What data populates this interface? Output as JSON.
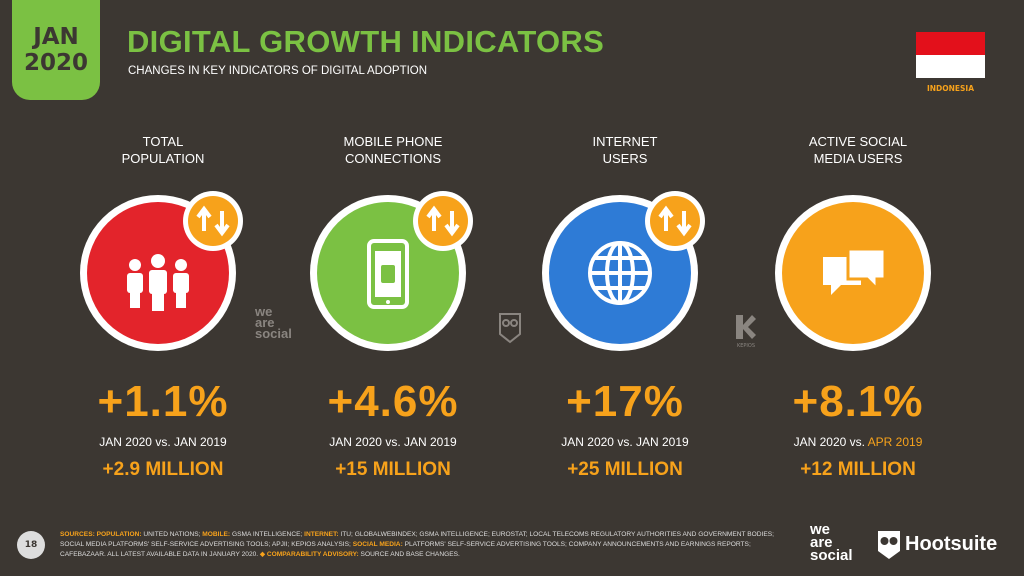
{
  "header": {
    "badge": [
      "JAN",
      "2020"
    ],
    "title": "DIGITAL GROWTH INDICATORS",
    "subtitle": "CHANGES IN KEY INDICATORS OF DIGITAL ADOPTION",
    "country": "INDONESIA"
  },
  "indicators": [
    {
      "label": [
        "TOTAL",
        "POPULATION"
      ],
      "change": "+1.1%",
      "comparison": [
        "JAN 2020 vs.",
        "JAN 2019"
      ],
      "absolute": "+2.9 MILLION"
    },
    {
      "label": [
        "MOBILE PHONE",
        "CONNECTIONS"
      ],
      "change": "+4.6%",
      "comparison": [
        "JAN 2020 vs.",
        "JAN 2019"
      ],
      "absolute": "+15 MILLION"
    },
    {
      "label": [
        "INTERNET",
        "USERS"
      ],
      "change": "+17%",
      "comparison": [
        "JAN 2020 vs.",
        "JAN 2019"
      ],
      "absolute": "+25 MILLION"
    },
    {
      "label": [
        "ACTIVE SOCIAL",
        "MEDIA USERS"
      ],
      "change": "+8.1%",
      "comparison": [
        "JAN 2020 vs.",
        "APR 2019"
      ],
      "absolute": "+12 MILLION"
    }
  ],
  "footer": {
    "page": "18",
    "sources": [
      {
        "text": "SOURCES: POPULATION:",
        "accent": true
      },
      {
        "text": " UNITED NATIONS; "
      },
      {
        "text": "MOBILE:",
        "accent": true
      },
      {
        "text": " GSMA INTELLIGENCE; "
      },
      {
        "text": "INTERNET:",
        "accent": true
      },
      {
        "text": " ITU; GLOBALWEBINDEX; GSMA INTELLIGENCE; EUROSTAT; LOCAL TELECOMS REGULATORY AUTHORITIES AND GOVERNMENT BODIES; SOCIAL MEDIA PLATFORMS' SELF-SERVICE ADVERTISING TOOLS; APJII; KEPIOS ANALYSIS; "
      },
      {
        "text": "SOCIAL MEDIA:",
        "accent": true
      },
      {
        "text": " PLATFORMS' SELF-SERVICE ADVERTISING TOOLS; COMPANY ANNOUNCEMENTS AND EARNINGS REPORTS; CAFEBAZAAR. ALL LATEST AVAILABLE DATA IN JANUARY 2020. "
      },
      {
        "text": "◆ COMPARABILITY ADVISORY:",
        "accent": true
      },
      {
        "text": " SOURCE AND BASE CHANGES."
      }
    ],
    "logo_lines": [
      "we",
      "are",
      "social"
    ],
    "brand": "Hootsuite",
    "watermark": "KEPIOS"
  }
}
